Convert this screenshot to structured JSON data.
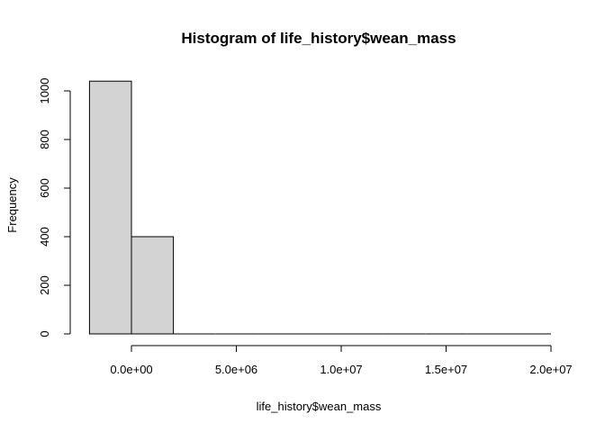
{
  "chart_data": {
    "type": "bar",
    "title": "Histogram of life_history$wean_mass",
    "xlabel": "life_history$wean_mass",
    "ylabel": "Frequency",
    "bins": [
      {
        "x0": -2000000,
        "x1": 0,
        "count": 1040
      },
      {
        "x0": 0,
        "x1": 2000000,
        "count": 400
      },
      {
        "x0": 2000000,
        "x1": 4000000,
        "count": 0
      },
      {
        "x0": 4000000,
        "x1": 6000000,
        "count": 0
      },
      {
        "x0": 6000000,
        "x1": 8000000,
        "count": 0
      },
      {
        "x0": 8000000,
        "x1": 10000000,
        "count": 0
      },
      {
        "x0": 10000000,
        "x1": 12000000,
        "count": 0
      },
      {
        "x0": 12000000,
        "x1": 14000000,
        "count": 0
      },
      {
        "x0": 14000000,
        "x1": 16000000,
        "count": 0
      },
      {
        "x0": 16000000,
        "x1": 18000000,
        "count": 0
      },
      {
        "x0": 18000000,
        "x1": 20000000,
        "count": 0
      }
    ],
    "xlim": [
      -2000000,
      20000000
    ],
    "ylim": [
      0,
      1040
    ],
    "x_ticks": [
      0,
      5000000,
      10000000,
      15000000,
      20000000
    ],
    "x_tick_labels": [
      "0.0e+00",
      "5.0e+06",
      "1.0e+07",
      "1.5e+07",
      "2.0e+07"
    ],
    "y_ticks": [
      0,
      200,
      400,
      600,
      800,
      1000
    ],
    "y_tick_labels": [
      "0",
      "200",
      "400",
      "600",
      "800",
      "1000"
    ],
    "bar_fill": "#d3d3d3",
    "bar_stroke": "#000000",
    "grid": false
  }
}
